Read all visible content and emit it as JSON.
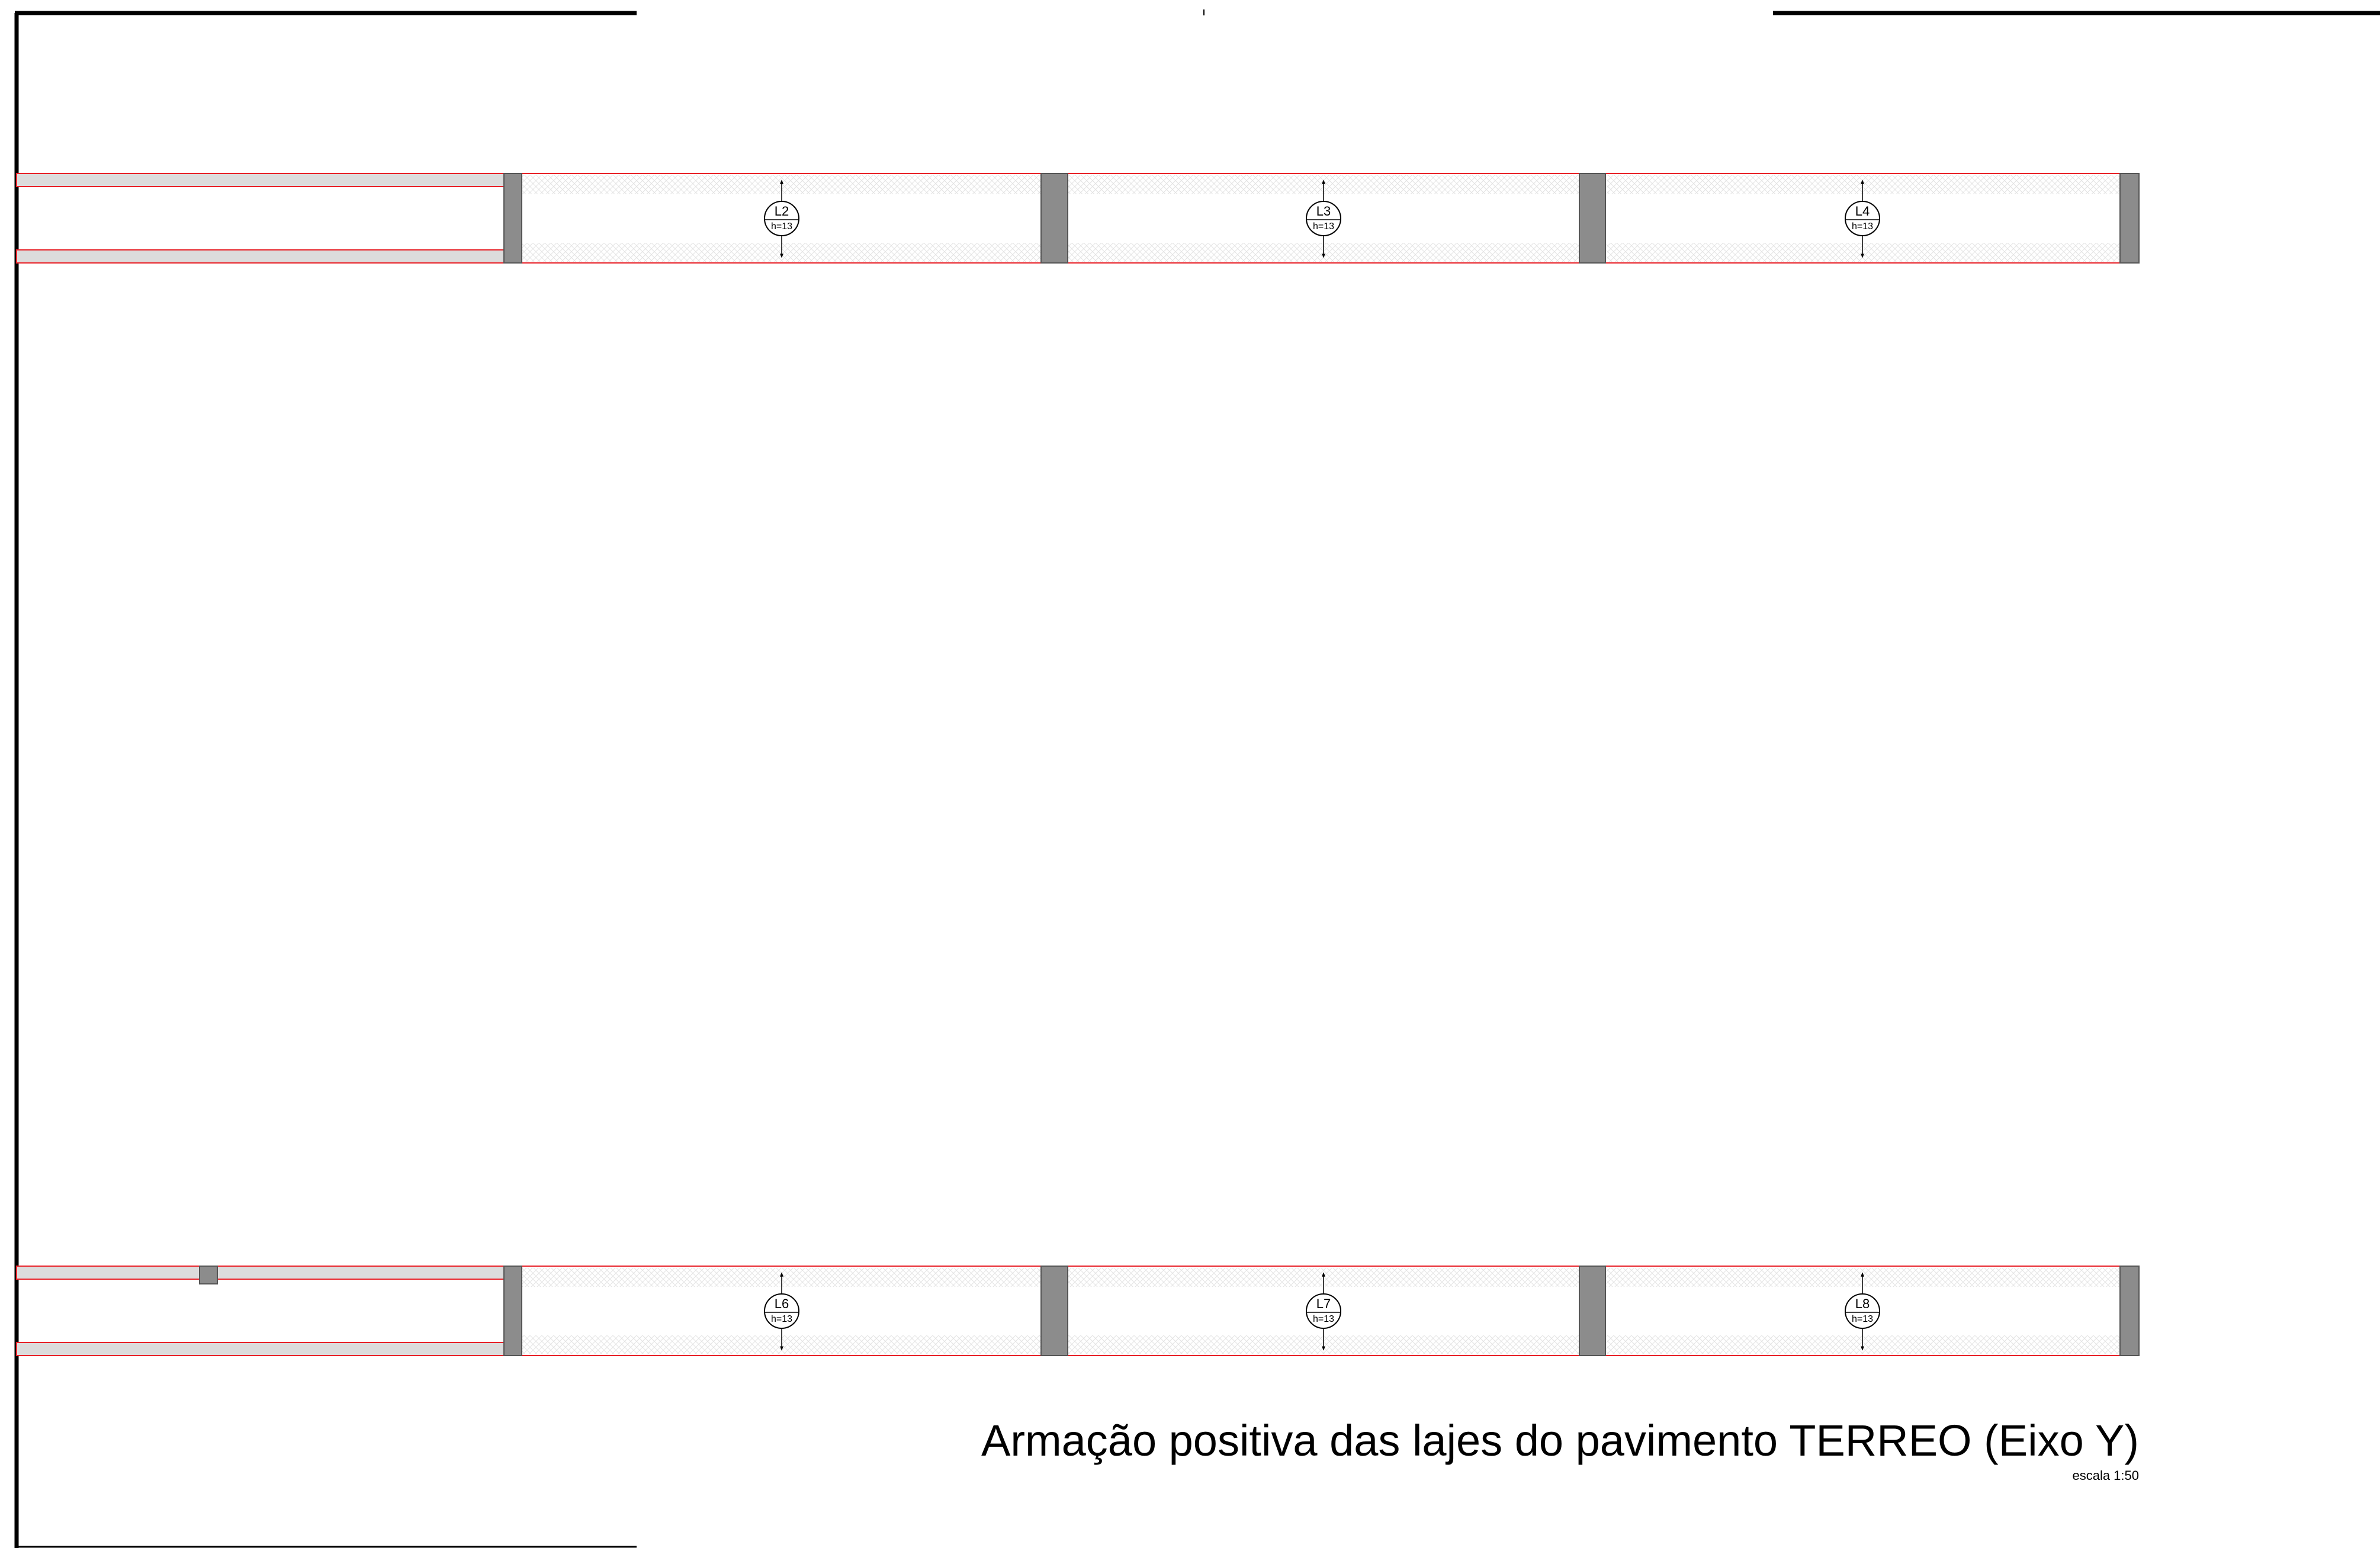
{
  "drawing": {
    "title": "Armação positiva das lajes do pavimento TERREO (Eixo Y)",
    "scale": "escala 1:50",
    "colors": {
      "slab_edge": "#e8232a",
      "column_fill": "#8c8c8c",
      "wall_fill": "#dcdcdc",
      "frame": "#000000"
    },
    "strips": [
      {
        "name": "top-strip",
        "slabs": [
          {
            "id": "L2",
            "height": "h=13"
          },
          {
            "id": "L3",
            "height": "h=13"
          },
          {
            "id": "L4",
            "height": "h=13"
          }
        ]
      },
      {
        "name": "bottom-strip",
        "slabs": [
          {
            "id": "L6",
            "height": "h=13"
          },
          {
            "id": "L7",
            "height": "h=13"
          },
          {
            "id": "L8",
            "height": "h=13"
          }
        ]
      }
    ]
  }
}
